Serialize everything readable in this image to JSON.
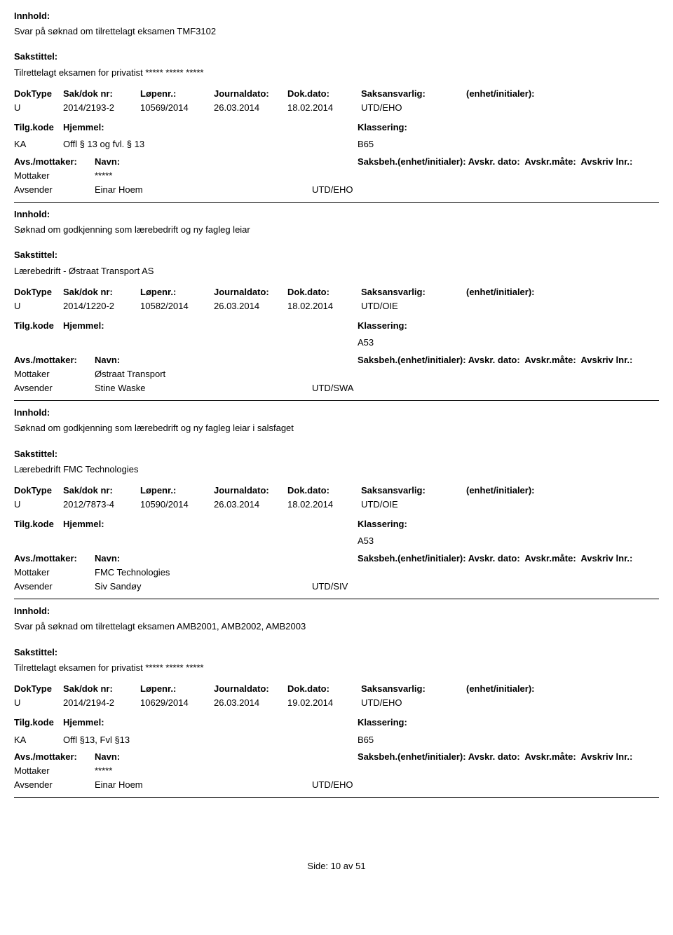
{
  "labels": {
    "innhold": "Innhold:",
    "sakstittel": "Sakstittel:",
    "doktype": "DokType",
    "sakdok": "Sak/dok nr:",
    "lopenr": "Løpenr.:",
    "journaldato": "Journaldato:",
    "dokdato": "Dok.dato:",
    "saksansvarlig": "Saksansvarlig:",
    "enhet": "(enhet/initialer):",
    "tilgkode": "Tilg.kode",
    "hjemmel": "Hjemmel:",
    "klassering": "Klassering:",
    "avsmottaker": "Avs./mottaker:",
    "navn": "Navn:",
    "saksbeh": "Saksbeh.(enhet/initialer):",
    "avskrdato": "Avskr. dato:",
    "avskrmate": "Avskr.måte:",
    "avskrivlnr": "Avskriv lnr.:",
    "mottaker": "Mottaker",
    "avsender": "Avsender"
  },
  "records": [
    {
      "innhold": "Svar på søknad om tilrettelagt eksamen TMF3102",
      "sakstittel": "Tilrettelagt eksamen for privatist ***** ***** *****",
      "doktype": "U",
      "sakdok": "2014/2193-2",
      "lopenr": "10569/2014",
      "journaldato": "26.03.2014",
      "dokdato": "18.02.2014",
      "saksansvarlig": "UTD/EHO",
      "tilgkode": "KA",
      "hjemmel": "Offl § 13 og fvl. § 13",
      "klassering": "B65",
      "mottaker_name": "*****",
      "mottaker_unit": "",
      "avsender_name": "Einar Hoem",
      "avsender_unit": "UTD/EHO"
    },
    {
      "innhold": "Søknad om godkjenning som lærebedrift og ny fagleg leiar",
      "sakstittel": "Lærebedrift - Østraat Transport AS",
      "doktype": "U",
      "sakdok": "2014/1220-2",
      "lopenr": "10582/2014",
      "journaldato": "26.03.2014",
      "dokdato": "18.02.2014",
      "saksansvarlig": "UTD/OIE",
      "tilgkode": "",
      "hjemmel": "",
      "klassering": "A53",
      "mottaker_name": "Østraat Transport",
      "mottaker_unit": "",
      "avsender_name": "Stine Waske",
      "avsender_unit": "UTD/SWA"
    },
    {
      "innhold": "Søknad om godkjenning som lærebedrift og ny fagleg leiar i salsfaget",
      "sakstittel": "Lærebedrift FMC Technologies",
      "doktype": "U",
      "sakdok": "2012/7873-4",
      "lopenr": "10590/2014",
      "journaldato": "26.03.2014",
      "dokdato": "18.02.2014",
      "saksansvarlig": "UTD/OIE",
      "tilgkode": "",
      "hjemmel": "",
      "klassering": "A53",
      "mottaker_name": "FMC Technologies",
      "mottaker_unit": "",
      "avsender_name": "Siv Sandøy",
      "avsender_unit": "UTD/SIV"
    },
    {
      "innhold": "Svar på søknad om tilrettelagt eksamen AMB2001, AMB2002, AMB2003",
      "sakstittel": "Tilrettelagt eksamen for privatist ***** ***** *****",
      "doktype": "U",
      "sakdok": "2014/2194-2",
      "lopenr": "10629/2014",
      "journaldato": "26.03.2014",
      "dokdato": "19.02.2014",
      "saksansvarlig": "UTD/EHO",
      "tilgkode": "KA",
      "hjemmel": "Offl §13, Fvl §13",
      "klassering": "B65",
      "mottaker_name": "*****",
      "mottaker_unit": "",
      "avsender_name": "Einar Hoem",
      "avsender_unit": "UTD/EHO"
    }
  ],
  "footer": {
    "side_label": "Side:",
    "page_current": "10",
    "page_sep": "av",
    "page_total": "51"
  }
}
